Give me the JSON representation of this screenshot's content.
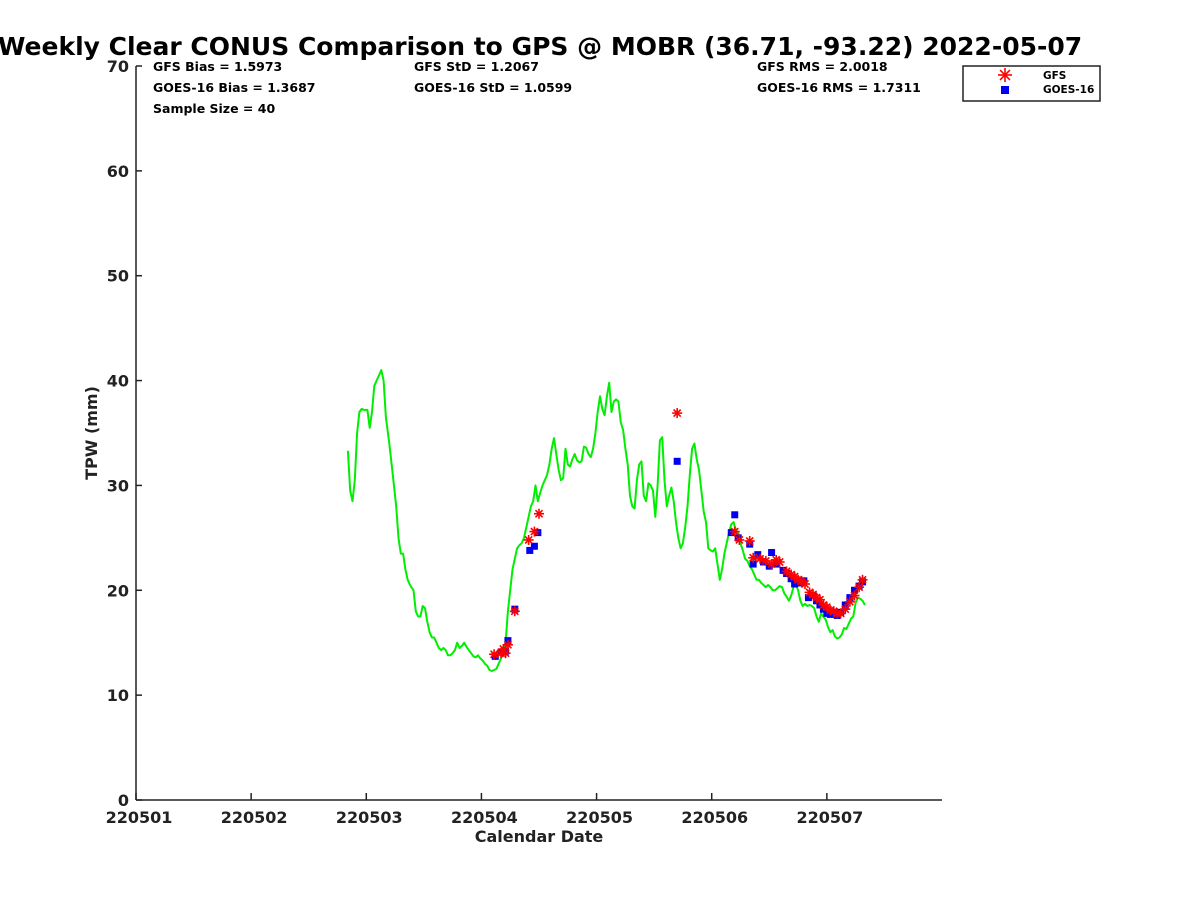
{
  "colors": {
    "gps": "#00ee00",
    "gfs": "#ff0000",
    "goes16": "#0000ee",
    "axis": "#222222"
  },
  "chart_data": {
    "type": "line",
    "title": "Weekly Clear CONUS Comparison to GPS @ MOBR (36.71, -93.22) 2022-05-07",
    "xlabel": "Calendar Date",
    "ylabel": "TPW (mm)",
    "xlim": [
      0,
      7
    ],
    "ylim": [
      0,
      70
    ],
    "x_ticks": [
      0,
      1,
      2,
      3,
      4,
      5,
      6
    ],
    "x_tick_labels": [
      "220501",
      "220502",
      "220503",
      "220504",
      "220505",
      "220506",
      "220507"
    ],
    "y_ticks": [
      0,
      10,
      20,
      30,
      40,
      50,
      60,
      70
    ],
    "y_tick_labels": [
      "0",
      "10",
      "20",
      "30",
      "40",
      "50",
      "60",
      "70"
    ],
    "stats": {
      "gfs_bias": "GFS Bias = 1.5973",
      "goes_bias": "GOES-16 Bias = 1.3687",
      "sample_size": "Sample Size = 40",
      "gfs_std": "GFS StD = 1.2067",
      "goes_std": "GOES-16 StD = 1.0599",
      "gfs_rms": "GFS RMS = 2.0018",
      "goes_rms": "GOES-16 RMS = 1.7311"
    },
    "legend": {
      "position": "top-right",
      "items": [
        {
          "name": "GFS",
          "marker": "asterisk"
        },
        {
          "name": "GOES-16",
          "marker": "square"
        }
      ]
    },
    "series": [
      {
        "name": "GPS",
        "style": "line",
        "points": [
          [
            1.84,
            33.3
          ],
          [
            1.86,
            29.5
          ],
          [
            1.88,
            28.5
          ],
          [
            1.9,
            30.5
          ],
          [
            1.92,
            35.0
          ],
          [
            1.94,
            37.0
          ],
          [
            1.96,
            37.3
          ],
          [
            1.98,
            37.2
          ],
          [
            2.01,
            37.2
          ],
          [
            2.03,
            35.5
          ],
          [
            2.05,
            37.0
          ],
          [
            2.07,
            39.5
          ],
          [
            2.09,
            40.0
          ],
          [
            2.11,
            40.5
          ],
          [
            2.13,
            41.0
          ],
          [
            2.15,
            40.0
          ],
          [
            2.17,
            36.5
          ],
          [
            2.2,
            34.0
          ],
          [
            2.23,
            31.0
          ],
          [
            2.26,
            28.0
          ],
          [
            2.28,
            25.0
          ],
          [
            2.3,
            23.5
          ],
          [
            2.32,
            23.5
          ],
          [
            2.34,
            22.0
          ],
          [
            2.36,
            21.0
          ],
          [
            2.38,
            20.5
          ],
          [
            2.41,
            20.0
          ],
          [
            2.43,
            18.0
          ],
          [
            2.45,
            17.5
          ],
          [
            2.47,
            17.5
          ],
          [
            2.49,
            18.5
          ],
          [
            2.51,
            18.3
          ],
          [
            2.53,
            17.0
          ],
          [
            2.55,
            16.0
          ],
          [
            2.57,
            15.5
          ],
          [
            2.59,
            15.5
          ],
          [
            2.61,
            15.0
          ],
          [
            2.63,
            14.5
          ],
          [
            2.65,
            14.3
          ],
          [
            2.67,
            14.5
          ],
          [
            2.69,
            14.3
          ],
          [
            2.71,
            13.8
          ],
          [
            2.73,
            13.8
          ],
          [
            2.75,
            14.0
          ],
          [
            2.77,
            14.3
          ],
          [
            2.79,
            15.0
          ],
          [
            2.81,
            14.5
          ],
          [
            2.83,
            14.7
          ],
          [
            2.85,
            15.0
          ],
          [
            2.87,
            14.6
          ],
          [
            2.89,
            14.3
          ],
          [
            2.91,
            14.0
          ],
          [
            2.93,
            13.7
          ],
          [
            2.95,
            13.6
          ],
          [
            2.97,
            13.8
          ],
          [
            2.99,
            13.5
          ],
          [
            3.01,
            13.3
          ],
          [
            3.03,
            13.0
          ],
          [
            3.05,
            12.8
          ],
          [
            3.07,
            12.4
          ],
          [
            3.09,
            12.3
          ],
          [
            3.11,
            12.4
          ],
          [
            3.13,
            12.5
          ],
          [
            3.15,
            13.0
          ],
          [
            3.17,
            13.5
          ],
          [
            3.19,
            14.0
          ],
          [
            3.21,
            15.0
          ],
          [
            3.23,
            18.0
          ],
          [
            3.25,
            20.0
          ],
          [
            3.27,
            22.0
          ],
          [
            3.29,
            23.0
          ],
          [
            3.31,
            24.0
          ],
          [
            3.33,
            24.3
          ],
          [
            3.35,
            24.5
          ],
          [
            3.37,
            25.0
          ],
          [
            3.39,
            26.0
          ],
          [
            3.41,
            27.0
          ],
          [
            3.43,
            28.0
          ],
          [
            3.45,
            28.5
          ],
          [
            3.47,
            30.0
          ],
          [
            3.49,
            28.5
          ],
          [
            3.51,
            29.3
          ],
          [
            3.53,
            30.0
          ],
          [
            3.55,
            30.5
          ],
          [
            3.57,
            31.0
          ],
          [
            3.59,
            32.0
          ],
          [
            3.61,
            33.5
          ],
          [
            3.63,
            34.5
          ],
          [
            3.65,
            33.0
          ],
          [
            3.67,
            31.5
          ],
          [
            3.69,
            30.5
          ],
          [
            3.71,
            30.7
          ],
          [
            3.73,
            33.5
          ],
          [
            3.75,
            32.0
          ],
          [
            3.77,
            31.8
          ],
          [
            3.79,
            32.5
          ],
          [
            3.81,
            33.0
          ],
          [
            3.83,
            32.4
          ],
          [
            3.85,
            32.2
          ],
          [
            3.87,
            32.3
          ],
          [
            3.89,
            33.7
          ],
          [
            3.91,
            33.6
          ],
          [
            3.93,
            33.0
          ],
          [
            3.95,
            32.7
          ],
          [
            3.97,
            33.5
          ],
          [
            3.99,
            35.0
          ],
          [
            4.01,
            37.0
          ],
          [
            4.03,
            38.5
          ],
          [
            4.05,
            37.3
          ],
          [
            4.07,
            36.7
          ],
          [
            4.09,
            38.5
          ],
          [
            4.11,
            39.8
          ],
          [
            4.13,
            37.0
          ],
          [
            4.15,
            38.0
          ],
          [
            4.17,
            38.2
          ],
          [
            4.19,
            38.0
          ],
          [
            4.21,
            36.0
          ],
          [
            4.23,
            35.3
          ],
          [
            4.25,
            33.5
          ],
          [
            4.27,
            32.0
          ],
          [
            4.29,
            29.0
          ],
          [
            4.31,
            28.0
          ],
          [
            4.33,
            27.8
          ],
          [
            4.35,
            30.5
          ],
          [
            4.37,
            32.0
          ],
          [
            4.39,
            32.3
          ],
          [
            4.41,
            29.0
          ],
          [
            4.43,
            28.5
          ],
          [
            4.45,
            30.2
          ],
          [
            4.47,
            30.0
          ],
          [
            4.49,
            29.5
          ],
          [
            4.51,
            27.0
          ],
          [
            4.53,
            30.0
          ],
          [
            4.55,
            34.3
          ],
          [
            4.57,
            34.6
          ],
          [
            4.59,
            30.5
          ],
          [
            4.61,
            28.0
          ],
          [
            4.63,
            29.0
          ],
          [
            4.65,
            29.8
          ],
          [
            4.67,
            28.5
          ],
          [
            4.69,
            26.5
          ],
          [
            4.71,
            25.0
          ],
          [
            4.73,
            24.0
          ],
          [
            4.75,
            24.5
          ],
          [
            4.77,
            26.0
          ],
          [
            4.79,
            28.0
          ],
          [
            4.81,
            31.0
          ],
          [
            4.83,
            33.5
          ],
          [
            4.85,
            34.0
          ],
          [
            4.87,
            32.5
          ],
          [
            4.89,
            31.5
          ],
          [
            4.91,
            29.5
          ],
          [
            4.93,
            27.5
          ],
          [
            4.95,
            26.5
          ],
          [
            4.97,
            24.0
          ],
          [
            4.99,
            23.8
          ],
          [
            5.01,
            23.7
          ],
          [
            5.03,
            24.0
          ],
          [
            5.05,
            22.5
          ],
          [
            5.07,
            21.0
          ],
          [
            5.09,
            22.0
          ],
          [
            5.11,
            23.5
          ],
          [
            5.13,
            24.5
          ],
          [
            5.15,
            25.5
          ],
          [
            5.17,
            26.3
          ],
          [
            5.19,
            26.5
          ],
          [
            5.21,
            25.7
          ],
          [
            5.23,
            25.5
          ],
          [
            5.25,
            24.5
          ],
          [
            5.27,
            23.8
          ],
          [
            5.29,
            23.0
          ],
          [
            5.31,
            22.8
          ],
          [
            5.33,
            22.3
          ],
          [
            5.35,
            22.0
          ],
          [
            5.37,
            21.5
          ],
          [
            5.39,
            21.0
          ],
          [
            5.41,
            21.0
          ],
          [
            5.43,
            20.7
          ],
          [
            5.45,
            20.5
          ],
          [
            5.47,
            20.3
          ],
          [
            5.49,
            20.5
          ],
          [
            5.51,
            20.3
          ],
          [
            5.53,
            20.0
          ],
          [
            5.55,
            20.0
          ],
          [
            5.57,
            20.2
          ],
          [
            5.59,
            20.4
          ],
          [
            5.61,
            20.3
          ],
          [
            5.63,
            19.7
          ],
          [
            5.65,
            19.4
          ],
          [
            5.67,
            19.0
          ],
          [
            5.69,
            19.5
          ],
          [
            5.71,
            20.3
          ],
          [
            5.73,
            20.6
          ],
          [
            5.75,
            20.0
          ],
          [
            5.77,
            19.0
          ],
          [
            5.79,
            18.5
          ],
          [
            5.81,
            18.7
          ],
          [
            5.83,
            18.5
          ],
          [
            5.85,
            18.6
          ],
          [
            5.87,
            18.5
          ],
          [
            5.89,
            18.3
          ],
          [
            5.91,
            17.5
          ],
          [
            5.93,
            17.0
          ],
          [
            5.95,
            17.8
          ],
          [
            5.97,
            17.5
          ],
          [
            5.99,
            17.2
          ],
          [
            6.01,
            16.5
          ],
          [
            6.03,
            16.0
          ],
          [
            6.05,
            16.2
          ],
          [
            6.07,
            15.6
          ],
          [
            6.09,
            15.4
          ],
          [
            6.11,
            15.5
          ],
          [
            6.13,
            15.8
          ],
          [
            6.15,
            16.4
          ],
          [
            6.17,
            16.3
          ],
          [
            6.19,
            16.8
          ],
          [
            6.21,
            17.3
          ],
          [
            6.23,
            17.5
          ],
          [
            6.25,
            18.8
          ],
          [
            6.27,
            19.3
          ],
          [
            6.29,
            19.2
          ],
          [
            6.31,
            19.0
          ],
          [
            6.33,
            18.6
          ]
        ]
      },
      {
        "name": "GFS",
        "style": "asterisk",
        "points": [
          [
            3.11,
            13.9
          ],
          [
            3.17,
            14.0
          ],
          [
            3.19,
            14.4
          ],
          [
            3.21,
            14.0
          ],
          [
            3.23,
            14.8
          ],
          [
            3.29,
            18.0
          ],
          [
            3.41,
            24.8
          ],
          [
            3.46,
            25.6
          ],
          [
            3.5,
            27.3
          ],
          [
            4.7,
            36.9
          ],
          [
            5.2,
            25.6
          ],
          [
            5.24,
            24.8
          ],
          [
            5.33,
            24.7
          ],
          [
            5.36,
            23.1
          ],
          [
            5.42,
            23.0
          ],
          [
            5.47,
            22.8
          ],
          [
            5.52,
            22.5
          ],
          [
            5.56,
            22.9
          ],
          [
            5.59,
            22.7
          ],
          [
            5.65,
            21.8
          ],
          [
            5.69,
            21.5
          ],
          [
            5.72,
            21.3
          ],
          [
            5.75,
            21.0
          ],
          [
            5.78,
            20.9
          ],
          [
            5.81,
            20.6
          ],
          [
            5.85,
            19.8
          ],
          [
            5.88,
            19.6
          ],
          [
            5.91,
            19.3
          ],
          [
            5.94,
            19.1
          ],
          [
            5.97,
            18.6
          ],
          [
            6.0,
            18.4
          ],
          [
            6.03,
            18.1
          ],
          [
            6.06,
            18.0
          ],
          [
            6.09,
            17.8
          ],
          [
            6.12,
            17.8
          ],
          [
            6.16,
            18.2
          ],
          [
            6.2,
            18.9
          ],
          [
            6.24,
            19.5
          ],
          [
            6.28,
            20.3
          ],
          [
            6.31,
            21.0
          ]
        ]
      },
      {
        "name": "GOES-16",
        "style": "square",
        "points": [
          [
            3.12,
            13.7
          ],
          [
            3.17,
            14.1
          ],
          [
            3.21,
            14.2
          ],
          [
            3.23,
            15.2
          ],
          [
            3.29,
            18.2
          ],
          [
            3.42,
            23.8
          ],
          [
            3.46,
            24.2
          ],
          [
            3.49,
            25.5
          ],
          [
            4.7,
            32.3
          ],
          [
            5.2,
            27.2
          ],
          [
            5.23,
            25.0
          ],
          [
            5.33,
            24.4
          ],
          [
            5.36,
            22.5
          ],
          [
            5.4,
            23.4
          ],
          [
            5.45,
            22.7
          ],
          [
            5.5,
            22.3
          ],
          [
            5.52,
            23.6
          ],
          [
            5.56,
            22.5
          ],
          [
            5.65,
            21.6
          ],
          [
            5.69,
            21.1
          ],
          [
            5.72,
            20.6
          ],
          [
            5.77,
            20.7
          ],
          [
            5.8,
            20.9
          ],
          [
            5.84,
            19.3
          ],
          [
            5.88,
            19.5
          ],
          [
            5.91,
            19.0
          ],
          [
            5.94,
            18.6
          ],
          [
            5.97,
            18.2
          ],
          [
            6.0,
            17.8
          ],
          [
            6.03,
            17.7
          ],
          [
            6.06,
            17.9
          ],
          [
            6.09,
            17.6
          ],
          [
            6.12,
            17.9
          ],
          [
            6.16,
            18.6
          ],
          [
            6.2,
            19.3
          ],
          [
            6.24,
            20.0
          ],
          [
            6.28,
            20.4
          ],
          [
            6.31,
            20.8
          ],
          [
            5.62,
            21.9
          ],
          [
            5.17,
            25.5
          ]
        ]
      }
    ]
  }
}
